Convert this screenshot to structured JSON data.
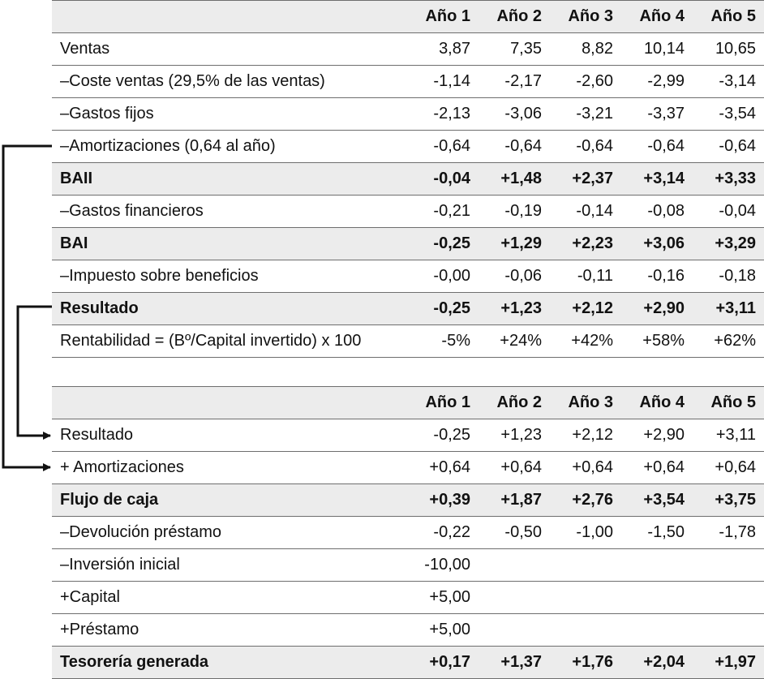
{
  "table1": {
    "headers": [
      "",
      "Año 1",
      "Año 2",
      "Año 3",
      "Año 4",
      "Año 5"
    ],
    "rows": [
      {
        "label": "Ventas",
        "bold": false,
        "values": [
          "3,87",
          "7,35",
          "8,82",
          "10,14",
          "10,65"
        ]
      },
      {
        "label": "–Coste ventas (29,5% de las ventas)",
        "bold": false,
        "values": [
          "-1,14",
          "-2,17",
          "-2,60",
          "-2,99",
          "-3,14"
        ]
      },
      {
        "label": "–Gastos fijos",
        "bold": false,
        "values": [
          "-2,13",
          "-3,06",
          "-3,21",
          "-3,37",
          "-3,54"
        ]
      },
      {
        "label": "–Amortizaciones (0,64 al año)",
        "bold": false,
        "values": [
          "-0,64",
          "-0,64",
          "-0,64",
          "-0,64",
          "-0,64"
        ]
      },
      {
        "label": "BAII",
        "bold": true,
        "values": [
          "-0,04",
          "+1,48",
          "+2,37",
          "+3,14",
          "+3,33"
        ]
      },
      {
        "label": "–Gastos financieros",
        "bold": false,
        "values": [
          "-0,21",
          "-0,19",
          "-0,14",
          "-0,08",
          "-0,04"
        ]
      },
      {
        "label": "BAI",
        "bold": true,
        "values": [
          "-0,25",
          "+1,29",
          "+2,23",
          "+3,06",
          "+3,29"
        ]
      },
      {
        "label": "–Impuesto sobre beneficios",
        "bold": false,
        "values": [
          "-0,00",
          "-0,06",
          "-0,11",
          "-0,16",
          "-0,18"
        ]
      },
      {
        "label": "Resultado",
        "bold": true,
        "values": [
          "-0,25",
          "+1,23",
          "+2,12",
          "+2,90",
          "+3,11"
        ]
      },
      {
        "label": "Rentabilidad = (Bº/Capital invertido) x 100",
        "bold": false,
        "values": [
          "-5%",
          "+24%",
          "+42%",
          "+58%",
          "+62%"
        ]
      }
    ]
  },
  "table2": {
    "headers": [
      "",
      "Año 1",
      "Año 2",
      "Año 3",
      "Año 4",
      "Año 5"
    ],
    "rows": [
      {
        "label": "Resultado",
        "bold": false,
        "values": [
          "-0,25",
          "+1,23",
          "+2,12",
          "+2,90",
          "+3,11"
        ]
      },
      {
        "label": "+ Amortizaciones",
        "bold": false,
        "values": [
          "+0,64",
          "+0,64",
          "+0,64",
          "+0,64",
          "+0,64"
        ]
      },
      {
        "label": "Flujo de caja",
        "bold": true,
        "values": [
          "+0,39",
          "+1,87",
          "+2,76",
          "+3,54",
          "+3,75"
        ]
      },
      {
        "label": "–Devolución préstamo",
        "bold": false,
        "values": [
          "-0,22",
          "-0,50",
          "-1,00",
          "-1,50",
          "-1,78"
        ]
      },
      {
        "label": "–Inversión inicial",
        "bold": false,
        "values": [
          "-10,00",
          "",
          "",
          "",
          ""
        ]
      },
      {
        "label": "+Capital",
        "bold": false,
        "values": [
          "+5,00",
          "",
          "",
          "",
          ""
        ]
      },
      {
        "label": "+Préstamo",
        "bold": false,
        "values": [
          "+5,00",
          "",
          "",
          "",
          ""
        ]
      },
      {
        "label": "Tesorería generada",
        "bold": true,
        "values": [
          "+0,17",
          "+1,37",
          "+1,76",
          "+2,04",
          "+1,97"
        ]
      }
    ]
  }
}
